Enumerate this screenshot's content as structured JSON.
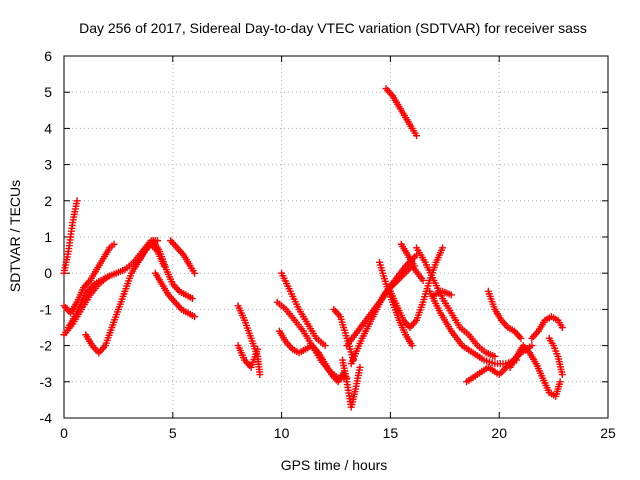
{
  "chart_data": {
    "type": "scatter",
    "title": "Day 256 of 2017, Sidereal Day-to-day VTEC variation (SDTVAR) for receiver sass",
    "xlabel": "GPS time / hours",
    "ylabel": "SDTVAR / TECUs",
    "xlim": [
      0,
      25
    ],
    "ylim": [
      -4,
      6
    ],
    "xticks": [
      0,
      5,
      10,
      15,
      20,
      25
    ],
    "yticks": [
      -4,
      -3,
      -2,
      -1,
      0,
      1,
      2,
      3,
      4,
      5,
      6
    ],
    "xtick_labels": [
      "0",
      "5",
      "10",
      "15",
      "20",
      "25"
    ],
    "ytick_labels": [
      "-4",
      "-3",
      "-2",
      "-1",
      "0",
      "1",
      "2",
      "3",
      "4",
      "5",
      "6"
    ],
    "grid": true,
    "marker": "+",
    "color": "#ff0000",
    "series": [
      {
        "name": "s1",
        "x": [
          0.0,
          0.1,
          0.2,
          0.3,
          0.4,
          0.5,
          0.6
        ],
        "y": [
          0.0,
          0.3,
          0.6,
          1.0,
          1.4,
          1.7,
          2.0
        ]
      },
      {
        "name": "s2",
        "x": [
          0.0,
          0.3,
          0.6,
          0.9,
          1.2,
          1.5,
          1.8,
          2.1,
          2.3
        ],
        "y": [
          -0.9,
          -1.1,
          -0.8,
          -0.4,
          -0.2,
          0.1,
          0.4,
          0.7,
          0.8
        ]
      },
      {
        "name": "s3",
        "x": [
          0.0,
          0.4,
          0.8,
          1.2,
          1.6,
          2.0,
          2.4,
          2.8,
          3.2,
          3.6,
          4.0,
          4.3
        ],
        "y": [
          -1.7,
          -1.4,
          -1.0,
          -0.6,
          -0.3,
          -0.1,
          0.0,
          0.1,
          0.3,
          0.6,
          0.9,
          0.9
        ]
      },
      {
        "name": "s4",
        "x": [
          1.0,
          1.3,
          1.6,
          1.9,
          2.2,
          2.5,
          2.8,
          3.1,
          3.4,
          3.7,
          4.0,
          4.3,
          4.6
        ],
        "y": [
          -1.7,
          -2.0,
          -2.2,
          -2.0,
          -1.5,
          -1.0,
          -0.5,
          0.0,
          0.3,
          0.6,
          0.8,
          0.6,
          0.2
        ]
      },
      {
        "name": "s5",
        "x": [
          0.2,
          0.5,
          0.8,
          1.1,
          1.4,
          1.7,
          2.0
        ],
        "y": [
          -1.5,
          -1.2,
          -0.8,
          -0.5,
          -0.3,
          -0.2,
          -0.1
        ]
      },
      {
        "name": "s6",
        "x": [
          3.5,
          3.8,
          4.1,
          4.4,
          4.7,
          5.0,
          5.3,
          5.6,
          5.9
        ],
        "y": [
          0.4,
          0.7,
          0.9,
          0.6,
          0.1,
          -0.3,
          -0.5,
          -0.6,
          -0.7
        ]
      },
      {
        "name": "s7",
        "x": [
          4.2,
          4.5,
          4.8,
          5.1,
          5.4,
          5.7,
          6.0
        ],
        "y": [
          0.0,
          -0.3,
          -0.6,
          -0.8,
          -1.0,
          -1.1,
          -1.2
        ]
      },
      {
        "name": "s8",
        "x": [
          4.9,
          5.2,
          5.5,
          5.8,
          6.0
        ],
        "y": [
          0.9,
          0.7,
          0.5,
          0.2,
          0.0
        ]
      },
      {
        "name": "s9",
        "x": [
          8.0,
          8.3,
          8.6,
          8.9,
          9.0
        ],
        "y": [
          -0.9,
          -1.3,
          -1.8,
          -2.3,
          -2.8
        ]
      },
      {
        "name": "s10",
        "x": [
          8.0,
          8.3,
          8.6,
          8.9
        ],
        "y": [
          -2.0,
          -2.4,
          -2.6,
          -2.1
        ]
      },
      {
        "name": "s11",
        "x": [
          9.8,
          10.2,
          10.6,
          11.0,
          11.4,
          11.8,
          12.2,
          12.6,
          13.0
        ],
        "y": [
          -0.8,
          -1.0,
          -1.3,
          -1.6,
          -2.0,
          -2.4,
          -2.7,
          -2.9,
          -2.9
        ]
      },
      {
        "name": "s12",
        "x": [
          9.9,
          10.2,
          10.5,
          10.8,
          11.1,
          11.4,
          11.7,
          12.0,
          12.3,
          12.6,
          12.9
        ],
        "y": [
          -1.6,
          -1.9,
          -2.1,
          -2.2,
          -2.1,
          -2.0,
          -2.2,
          -2.5,
          -2.8,
          -3.0,
          -2.7
        ]
      },
      {
        "name": "s13",
        "x": [
          10.0,
          10.4,
          10.8,
          11.2,
          11.6,
          12.0
        ],
        "y": [
          0.0,
          -0.5,
          -1.0,
          -1.4,
          -1.8,
          -2.0
        ]
      },
      {
        "name": "s14",
        "x": [
          12.4,
          12.7,
          13.0,
          13.3
        ],
        "y": [
          -1.0,
          -1.2,
          -1.8,
          -2.4
        ]
      },
      {
        "name": "s15",
        "x": [
          12.8,
          13.0,
          13.2,
          13.4,
          13.6
        ],
        "y": [
          -2.4,
          -3.0,
          -3.7,
          -3.2,
          -2.6
        ]
      },
      {
        "name": "s16",
        "x": [
          13.0,
          13.5,
          14.0,
          14.5,
          15.0,
          15.5,
          16.0,
          16.5
        ],
        "y": [
          -2.0,
          -1.6,
          -1.2,
          -0.8,
          -0.4,
          -0.1,
          0.2,
          -0.2
        ]
      },
      {
        "name": "s17",
        "x": [
          13.2,
          13.7,
          14.2,
          14.7,
          15.2,
          15.7,
          16.2
        ],
        "y": [
          -2.5,
          -1.8,
          -1.2,
          -0.6,
          -0.2,
          0.2,
          0.5
        ]
      },
      {
        "name": "s18",
        "x": [
          14.5,
          14.8,
          15.1,
          15.4,
          15.7,
          16.0
        ],
        "y": [
          0.3,
          -0.3,
          -0.8,
          -1.3,
          -1.7,
          -2.0
        ]
      },
      {
        "name": "s19",
        "x": [
          15.0,
          15.3,
          15.6,
          15.9,
          16.2,
          16.5,
          16.8,
          17.1,
          17.4
        ],
        "y": [
          -0.5,
          -0.9,
          -1.3,
          -1.5,
          -1.3,
          -0.8,
          -0.2,
          0.3,
          0.7
        ]
      },
      {
        "name": "s20",
        "x": [
          15.5,
          15.8,
          16.1
        ],
        "y": [
          0.8,
          0.5,
          0.2
        ]
      },
      {
        "name": "s21",
        "x": [
          14.8,
          15.1,
          15.4,
          15.7,
          16.0,
          16.2
        ],
        "y": [
          5.1,
          4.9,
          4.6,
          4.3,
          4.0,
          3.8
        ]
      },
      {
        "name": "s22",
        "x": [
          16.2,
          16.6,
          17.0,
          17.4,
          17.8,
          18.2,
          18.6,
          19.0,
          19.4,
          19.8
        ],
        "y": [
          0.7,
          0.3,
          -0.2,
          -0.7,
          -1.1,
          -1.5,
          -1.7,
          -2.0,
          -2.2,
          -2.3
        ]
      },
      {
        "name": "s23",
        "x": [
          16.8,
          17.3,
          17.8,
          18.3,
          18.8,
          19.3,
          19.8,
          20.3,
          20.8
        ],
        "y": [
          -0.5,
          -1.1,
          -1.6,
          -2.0,
          -2.2,
          -2.4,
          -2.5,
          -2.5,
          -2.4
        ]
      },
      {
        "name": "s24",
        "x": [
          17.0,
          17.4,
          17.8
        ],
        "y": [
          -0.6,
          -0.5,
          -0.6
        ]
      },
      {
        "name": "s25",
        "x": [
          18.5,
          19.0,
          19.5,
          20.0,
          20.5,
          21.0,
          21.5
        ],
        "y": [
          -3.0,
          -2.8,
          -2.6,
          -2.8,
          -2.5,
          -2.2,
          -2.0
        ]
      },
      {
        "name": "s26",
        "x": [
          19.5,
          19.8,
          20.1,
          20.4,
          20.7,
          21.0
        ],
        "y": [
          -0.5,
          -1.0,
          -1.3,
          -1.5,
          -1.6,
          -1.8
        ]
      },
      {
        "name": "s27",
        "x": [
          20.5,
          20.8,
          21.1,
          21.4,
          21.7,
          22.0,
          22.3,
          22.6,
          22.8
        ],
        "y": [
          -2.6,
          -2.3,
          -2.0,
          -2.2,
          -2.5,
          -2.9,
          -3.3,
          -3.4,
          -3.0
        ]
      },
      {
        "name": "s28",
        "x": [
          21.5,
          21.8,
          22.1,
          22.4,
          22.7,
          22.9
        ],
        "y": [
          -1.8,
          -1.6,
          -1.3,
          -1.2,
          -1.3,
          -1.5
        ]
      },
      {
        "name": "s29",
        "x": [
          22.3,
          22.5,
          22.7,
          22.9
        ],
        "y": [
          -1.8,
          -2.0,
          -2.3,
          -2.8
        ]
      }
    ]
  }
}
